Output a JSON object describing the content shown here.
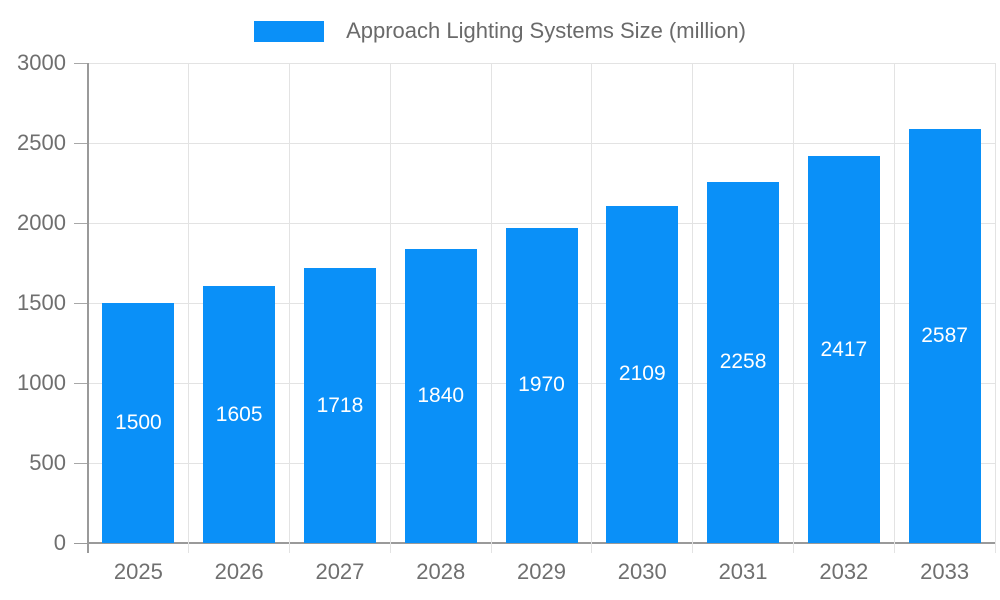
{
  "legend": {
    "label": "Approach Lighting Systems Size (million)",
    "swatch_color": "#0a90f8"
  },
  "chart_data": {
    "type": "bar",
    "title": "Approach Lighting Systems Size (million)",
    "series_name": "Approach Lighting Systems Size (million)",
    "categories": [
      "2025",
      "2026",
      "2027",
      "2028",
      "2029",
      "2030",
      "2031",
      "2032",
      "2033"
    ],
    "values": [
      1500,
      1605,
      1718,
      1840,
      1970,
      2109,
      2258,
      2417,
      2587
    ],
    "value_labels": [
      "1500",
      "1605",
      "1718",
      "1840",
      "1970",
      "2109",
      "2258",
      "2417",
      "2587"
    ],
    "xlabel": "",
    "ylabel": "",
    "ylim": [
      0,
      3000
    ],
    "yticks": [
      0,
      500,
      1000,
      1500,
      2000,
      2500,
      3000
    ],
    "ytick_labels": [
      "0",
      "500",
      "1000",
      "1500",
      "2000",
      "2500",
      "3000"
    ],
    "grid": true,
    "legend_position": "top",
    "colors": {
      "bar": "#0a90f8",
      "bar_value_text": "#ffffff",
      "grid": "#e3e3e3",
      "axis_line": "#9a9a9a",
      "tick": "#a8a8a8",
      "axis_text": "#6f6f6f",
      "legend_text": "#6a6a6a"
    }
  }
}
